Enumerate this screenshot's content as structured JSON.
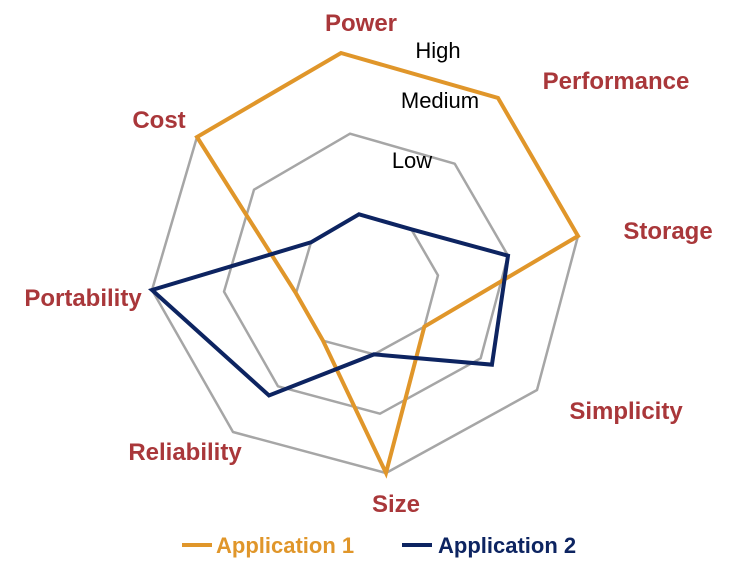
{
  "chart_data": {
    "type": "radar",
    "axes": [
      "Power",
      "Performance",
      "Storage",
      "Simplicity",
      "Size",
      "Reliability",
      "Portability",
      "Cost"
    ],
    "levels": [
      "Low",
      "Medium",
      "High"
    ],
    "scale": [
      0,
      3
    ],
    "grid": true,
    "legend_position": "bottom",
    "series": [
      {
        "name": "Application 1",
        "color": "#e0962a",
        "values": [
          3,
          3,
          3,
          1,
          3,
          1,
          1,
          3
        ]
      },
      {
        "name": "Application 2",
        "color": "#0d2461",
        "values": [
          1,
          1,
          2,
          2.2,
          1,
          2.2,
          3,
          1
        ]
      }
    ]
  },
  "grid_color": "#a6a6a6"
}
